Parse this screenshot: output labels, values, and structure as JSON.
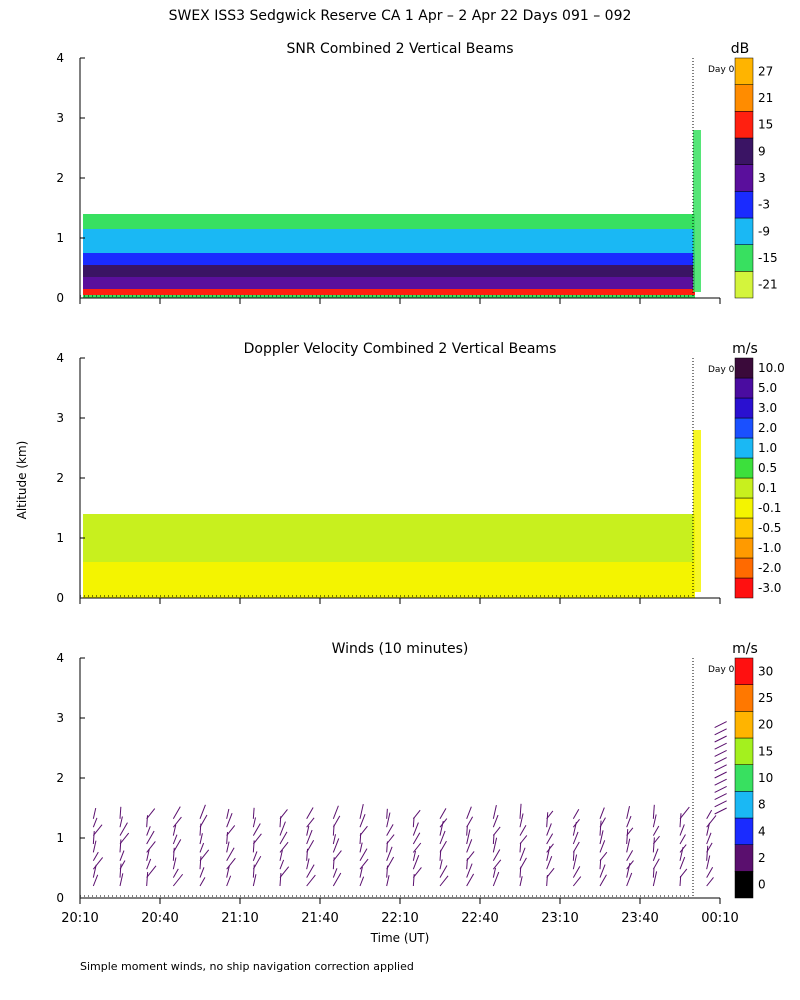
{
  "figure": {
    "title": "SWEX ISS3 Sedgwick Reserve CA   1 Apr –  2 Apr 22 Days 091 – 092",
    "y_axis_label": "Altitude (km)",
    "x_axis_label": "Time (UT)",
    "footnote": "Simple moment winds, no ship navigation correction applied",
    "day_marker_label": "Day 0",
    "colors": {
      "axis": "#000000",
      "background": "#ffffff"
    }
  },
  "chart_data": [
    {
      "id": "snr",
      "type": "heatmap",
      "title": "SNR Combined 2 Vertical Beams",
      "unit": "dB",
      "ylim": [
        0,
        4
      ],
      "yticks": [
        "0",
        "1",
        "2",
        "3",
        "4"
      ],
      "xlim_minutes_from_2010": [
        0,
        240
      ],
      "x_tick_labels": [],
      "colorbar": {
        "labels": [
          "-21",
          "-15",
          "-9",
          "-3",
          "3",
          "9",
          "15",
          "21",
          "27"
        ],
        "colors": [
          "#d4f43c",
          "#38e060",
          "#1ab8f4",
          "#1a2bff",
          "#5a0f9c",
          "#3a1464",
          "#ff2010",
          "#ff8c00",
          "#ffb400"
        ]
      },
      "layers": [
        {
          "from": 0.0,
          "to": 1.4,
          "color": "#38e060"
        },
        {
          "from": 0.75,
          "to": 1.15,
          "color": "#1ab8f4"
        },
        {
          "from": 0.55,
          "to": 0.75,
          "color": "#1a2bff"
        },
        {
          "from": 0.35,
          "to": 0.55,
          "color": "#3a1464"
        },
        {
          "from": 0.15,
          "to": 0.35,
          "color": "#5a0f9c"
        },
        {
          "from": 0.05,
          "to": 0.15,
          "color": "#ff2010"
        }
      ],
      "data_top_km": 1.4
    },
    {
      "id": "doppler",
      "type": "heatmap",
      "title": "Doppler Velocity Combined 2 Vertical Beams",
      "unit": "m/s",
      "ylim": [
        0,
        4
      ],
      "yticks": [
        "0",
        "1",
        "2",
        "3",
        "4"
      ],
      "xlim_minutes_from_2010": [
        0,
        240
      ],
      "x_tick_labels": [],
      "colorbar": {
        "labels": [
          "-3.0",
          "-2.0",
          "-1.0",
          "-0.5",
          "-0.1",
          "0.1",
          "0.5",
          "1.0",
          "2.0",
          "3.0",
          "5.0",
          "10.0"
        ],
        "colors": [
          "#ff1010",
          "#ff6a00",
          "#ff9a00",
          "#ffc800",
          "#f4f400",
          "#c8f01e",
          "#3ce03c",
          "#1ab8f4",
          "#1a50ff",
          "#2a10d0",
          "#4a0ca0",
          "#3a0a3a"
        ]
      },
      "layers": [
        {
          "from": 0.0,
          "to": 1.4,
          "color": "#f4f400"
        },
        {
          "from": 0.6,
          "to": 1.4,
          "color": "#c8f01e"
        }
      ],
      "data_top_km": 1.4
    },
    {
      "id": "winds",
      "type": "scatter",
      "title": "Winds (10 minutes)",
      "unit": "m/s",
      "ylim": [
        0,
        4
      ],
      "yticks": [
        "0",
        "1",
        "2",
        "3",
        "4"
      ],
      "xlim_minutes_from_2010": [
        0,
        240
      ],
      "x_tick_labels": [
        "20:10",
        "20:40",
        "21:10",
        "21:40",
        "22:10",
        "22:40",
        "23:10",
        "23:40",
        "00:10"
      ],
      "colorbar": {
        "labels": [
          "0",
          "2",
          "4",
          "8",
          "10",
          "15",
          "20",
          "25",
          "30"
        ],
        "colors": [
          "#000000",
          "#5a0f6e",
          "#1a2bff",
          "#1ab8f4",
          "#38e060",
          "#a4f01e",
          "#ffb400",
          "#ff7800",
          "#ff1010"
        ]
      },
      "barb_times_min": [
        5,
        15,
        25,
        35,
        45,
        55,
        65,
        75,
        85,
        95,
        105,
        115,
        125,
        135,
        145,
        155,
        165,
        175,
        185,
        195,
        205,
        215,
        225,
        235
      ],
      "barb_top_km": 1.35,
      "late_barbs_time_min": 235,
      "late_barbs_top_km": 2.9
    }
  ]
}
